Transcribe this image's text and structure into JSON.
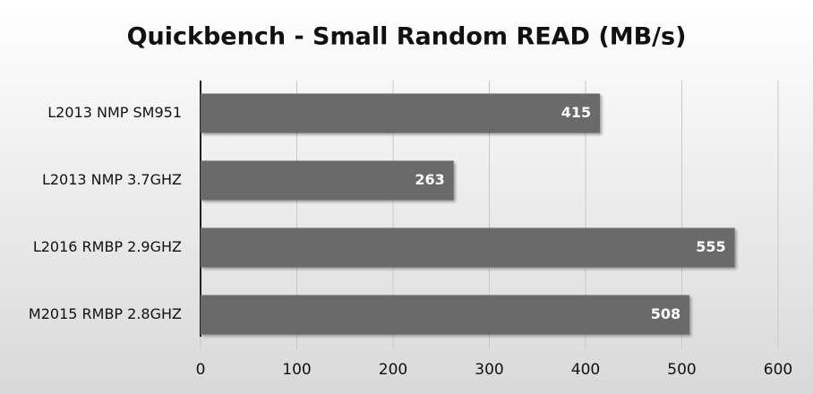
{
  "chart_data": {
    "type": "bar",
    "orientation": "horizontal",
    "title": "Quickbench - Small Random READ (MB/s)",
    "categories": [
      "L2013 NMP SM951",
      "L2013 NMP 3.7GHZ",
      "L2016 RMBP 2.9GHZ",
      "M2015 RMBP 2.8GHZ"
    ],
    "values": [
      415,
      263,
      555,
      508
    ],
    "color": "#6b6b6b",
    "xlim": [
      0,
      600
    ],
    "xticks": [
      0,
      100,
      200,
      300,
      400,
      500,
      600
    ],
    "grid": true
  }
}
